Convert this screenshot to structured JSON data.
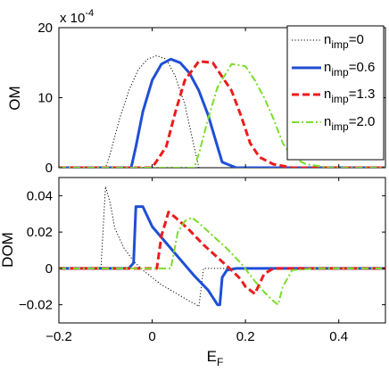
{
  "chart_data": [
    {
      "type": "line",
      "id": "om",
      "ylabel": "OM",
      "ylabel_sub": "",
      "exponent_label": "x 10",
      "exponent_power": "-4",
      "xlim": [
        -0.2,
        0.5
      ],
      "ylim": [
        0,
        20
      ],
      "xticks": [
        -0.2,
        0,
        0.2,
        0.4
      ],
      "xtick_labels": [
        "",
        "",
        "",
        ""
      ],
      "yticks": [
        0,
        10,
        20
      ],
      "ytick_labels": [
        "0",
        "10",
        "20"
      ],
      "grid": false,
      "legend": {
        "placement": "top-right",
        "entries": [
          {
            "base": "n",
            "sub": "imp",
            "suffix": "=0"
          },
          {
            "base": "n",
            "sub": "imp",
            "suffix": "=0.6"
          },
          {
            "base": "n",
            "sub": "imp",
            "suffix": "=1.3"
          },
          {
            "base": "n",
            "sub": "imp",
            "suffix": "=2.0"
          }
        ]
      },
      "series": [
        {
          "color": "#000000",
          "style": "dotted",
          "width": 1,
          "x": [
            -0.2,
            -0.1,
            -0.09,
            -0.07,
            -0.05,
            -0.03,
            -0.01,
            0.01,
            0.03,
            0.05,
            0.07,
            0.09,
            0.1,
            0.5
          ],
          "y": [
            0,
            0,
            2,
            7,
            11,
            14,
            15.5,
            16,
            15.5,
            13,
            9,
            3,
            0,
            0
          ]
        },
        {
          "color": "#1f4fd6",
          "style": "solid",
          "width": 3,
          "x": [
            -0.2,
            -0.045,
            -0.035,
            -0.02,
            0.0,
            0.02,
            0.04,
            0.06,
            0.08,
            0.1,
            0.12,
            0.14,
            0.15,
            0.18,
            0.5
          ],
          "y": [
            0,
            0,
            3,
            8,
            12.5,
            14.8,
            15.5,
            15,
            13.5,
            11,
            7.5,
            3,
            0.8,
            0,
            0
          ]
        },
        {
          "color": "#ee1b1b",
          "style": "dashed",
          "width": 3,
          "x": [
            -0.2,
            0.0,
            0.03,
            0.05,
            0.07,
            0.1,
            0.13,
            0.15,
            0.17,
            0.19,
            0.21,
            0.23,
            0.26,
            0.3,
            0.5
          ],
          "y": [
            0,
            0,
            3,
            8,
            12.5,
            15.2,
            15,
            13,
            11,
            7.5,
            3.5,
            1.5,
            0.5,
            0,
            0
          ]
        },
        {
          "color": "#7bdc2b",
          "style": "dashdot",
          "width": 2,
          "x": [
            -0.2,
            0.09,
            0.1,
            0.12,
            0.14,
            0.17,
            0.2,
            0.22,
            0.24,
            0.26,
            0.28,
            0.3,
            0.33,
            0.38,
            0.5
          ],
          "y": [
            0,
            0,
            2,
            7,
            11.5,
            14.8,
            14.5,
            12.5,
            10,
            7,
            3.5,
            1.5,
            0.5,
            0,
            0
          ]
        }
      ]
    },
    {
      "type": "line",
      "id": "dom",
      "ylabel": "DOM",
      "xlabel": "E",
      "xlabel_sub": "F",
      "xlim": [
        -0.2,
        0.5
      ],
      "ylim": [
        -0.03,
        0.05
      ],
      "xticks": [
        -0.2,
        0,
        0.2,
        0.4
      ],
      "xtick_labels": [
        "−0.2",
        "0",
        "0.2",
        "0.4"
      ],
      "yticks": [
        -0.02,
        0,
        0.02,
        0.04
      ],
      "ytick_labels": [
        "−0.02",
        "0",
        "0.02",
        "0.04"
      ],
      "grid": false,
      "series": [
        {
          "color": "#000000",
          "style": "dotted",
          "width": 1,
          "x": [
            -0.2,
            -0.11,
            -0.1,
            -0.09,
            -0.08,
            -0.06,
            -0.04,
            -0.02,
            0.0,
            0.02,
            0.04,
            0.06,
            0.08,
            0.095,
            0.1,
            0.11,
            0.5
          ],
          "y": [
            0,
            0,
            0.045,
            0.036,
            0.022,
            0.011,
            0.004,
            -0.001,
            -0.005,
            -0.009,
            -0.012,
            -0.015,
            -0.018,
            -0.02,
            -0.021,
            0,
            0
          ]
        },
        {
          "color": "#1f4fd6",
          "style": "solid",
          "width": 3,
          "x": [
            -0.2,
            -0.05,
            -0.04,
            -0.035,
            -0.02,
            0.0,
            0.03,
            0.06,
            0.09,
            0.12,
            0.14,
            0.145,
            0.15,
            0.16,
            0.18,
            0.5
          ],
          "y": [
            0,
            0,
            0.003,
            0.034,
            0.034,
            0.023,
            0.014,
            0.005,
            -0.004,
            -0.012,
            -0.02,
            -0.02,
            -0.005,
            -0.001,
            0,
            0
          ]
        },
        {
          "color": "#ee1b1b",
          "style": "dashed",
          "width": 3,
          "x": [
            -0.2,
            0.01,
            0.02,
            0.035,
            0.05,
            0.08,
            0.11,
            0.14,
            0.17,
            0.19,
            0.2,
            0.21,
            0.22,
            0.24,
            0.26,
            0.3,
            0.5
          ],
          "y": [
            0,
            0,
            0.018,
            0.031,
            0.028,
            0.021,
            0.013,
            0.006,
            -0.001,
            -0.006,
            -0.01,
            -0.012,
            -0.014,
            -0.003,
            0,
            0,
            0
          ]
        },
        {
          "color": "#7bdc2b",
          "style": "dashdot",
          "width": 2,
          "x": [
            -0.2,
            0.04,
            0.055,
            0.07,
            0.085,
            0.1,
            0.13,
            0.16,
            0.19,
            0.22,
            0.24,
            0.26,
            0.27,
            0.28,
            0.3,
            0.35,
            0.5
          ],
          "y": [
            0,
            0,
            0.02,
            0.026,
            0.028,
            0.025,
            0.018,
            0.011,
            0.003,
            -0.007,
            -0.013,
            -0.018,
            -0.02,
            -0.01,
            -0.001,
            0,
            0
          ]
        }
      ]
    }
  ]
}
